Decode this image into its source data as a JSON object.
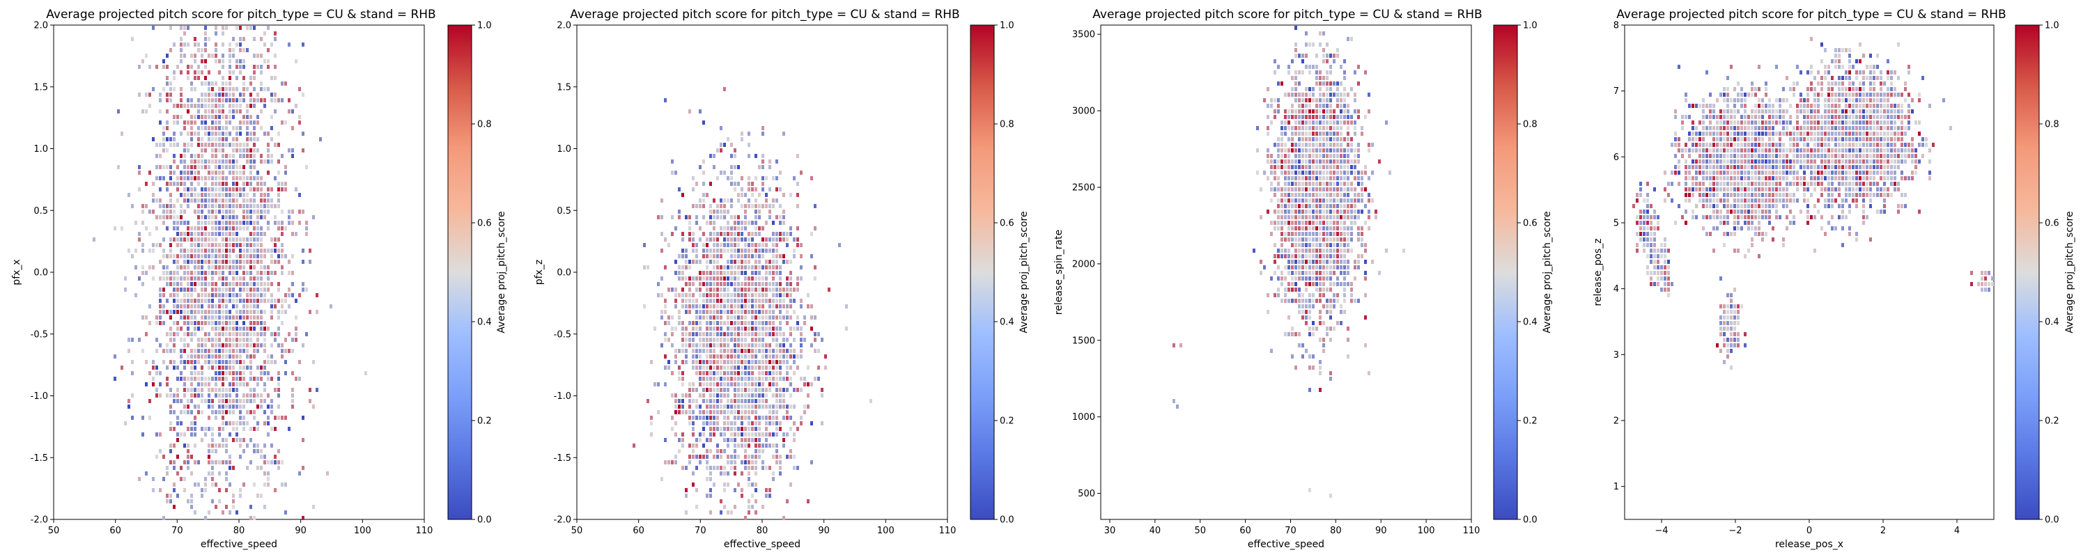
{
  "figure": {
    "background": "#ffffff"
  },
  "colorbar": {
    "label": "Average proj_pitch_score",
    "ticks": [
      "0.0",
      "0.2",
      "0.4",
      "0.6",
      "0.8",
      "1.0"
    ],
    "range": [
      0,
      1
    ],
    "colormap": "coolwarm",
    "color_low": "#3b4cc0",
    "color_mid": "#dddddd",
    "color_high": "#b40426"
  },
  "chart_data": [
    {
      "type": "heatmap",
      "subtype": "hexbin",
      "title": "Average projected pitch score for pitch_type = CU & stand = RHB",
      "xlabel": "effective_speed",
      "ylabel": "pfx_x",
      "xlim": [
        50,
        110
      ],
      "ylim": [
        -2,
        2
      ],
      "xticks": [
        "50",
        "60",
        "70",
        "80",
        "90",
        "100",
        "110"
      ],
      "yticks": [
        "-2.0",
        "-1.5",
        "-1.0",
        "-0.5",
        "0.0",
        "0.5",
        "1.0",
        "1.5",
        "2.0"
      ],
      "clusters": [
        {
          "cx": 77,
          "cy": 0.1,
          "sx": 5.5,
          "sy": 1.0,
          "n": 4200
        }
      ]
    },
    {
      "type": "heatmap",
      "subtype": "hexbin",
      "title": "Average projected pitch score for pitch_type = CU & stand = RHB",
      "xlabel": "effective_speed",
      "ylabel": "pfx_z",
      "xlim": [
        50,
        110
      ],
      "ylim": [
        -2,
        2
      ],
      "xticks": [
        "50",
        "60",
        "70",
        "80",
        "90",
        "100",
        "110"
      ],
      "yticks": [
        "-2.0",
        "-1.5",
        "-1.0",
        "-0.5",
        "0.0",
        "0.5",
        "1.0",
        "1.5",
        "2.0"
      ],
      "clusters": [
        {
          "cx": 76,
          "cy": -0.5,
          "sx": 5.0,
          "sy": 0.6,
          "n": 3800
        }
      ]
    },
    {
      "type": "heatmap",
      "subtype": "hexbin",
      "title": "Average projected pitch score for pitch_type = CU & stand = RHB",
      "xlabel": "effective_speed",
      "ylabel": "release_spin_rate",
      "xlim": [
        28,
        110
      ],
      "ylim": [
        330,
        3560
      ],
      "xticks": [
        "30",
        "40",
        "50",
        "60",
        "70",
        "80",
        "90",
        "100",
        "110"
      ],
      "yticks": [
        "500",
        "1000",
        "1500",
        "2000",
        "2500",
        "3000",
        "3500"
      ],
      "clusters": [
        {
          "cx": 76,
          "cy": 2450,
          "sx": 4.5,
          "sy": 380,
          "n": 3600
        }
      ],
      "outliers": [
        {
          "x": 44,
          "y": 1480
        },
        {
          "x": 46,
          "y": 1460
        },
        {
          "x": 44,
          "y": 1100
        },
        {
          "x": 45,
          "y": 1080
        },
        {
          "x": 74,
          "y": 530
        },
        {
          "x": 79,
          "y": 470
        }
      ]
    },
    {
      "type": "heatmap",
      "subtype": "hexbin",
      "title": "Average projected pitch score for pitch_type = CU & stand = RHB",
      "xlabel": "release_pos_x",
      "ylabel": "release_pos_z",
      "xlim": [
        -5,
        5
      ],
      "ylim": [
        0.5,
        8
      ],
      "xticks": [
        "−4",
        "−2",
        "0",
        "2",
        "4"
      ],
      "yticks": [
        "1",
        "2",
        "3",
        "4",
        "5",
        "6",
        "7",
        "8"
      ],
      "clusters": [
        {
          "cx": -1.8,
          "cy": 5.9,
          "sx": 0.75,
          "sy": 0.45,
          "n": 2600
        },
        {
          "cx": 1.2,
          "cy": 6.3,
          "sx": 0.75,
          "sy": 0.5,
          "n": 2200
        },
        {
          "cx": -4.4,
          "cy": 5.0,
          "sx": 0.15,
          "sy": 0.25,
          "n": 120
        },
        {
          "cx": -4.0,
          "cy": 4.3,
          "sx": 0.15,
          "sy": 0.2,
          "n": 80
        },
        {
          "cx": -2.2,
          "cy": 3.4,
          "sx": 0.15,
          "sy": 0.25,
          "n": 120
        },
        {
          "cx": 4.8,
          "cy": 4.1,
          "sx": 0.15,
          "sy": 0.08,
          "n": 25
        }
      ]
    }
  ]
}
